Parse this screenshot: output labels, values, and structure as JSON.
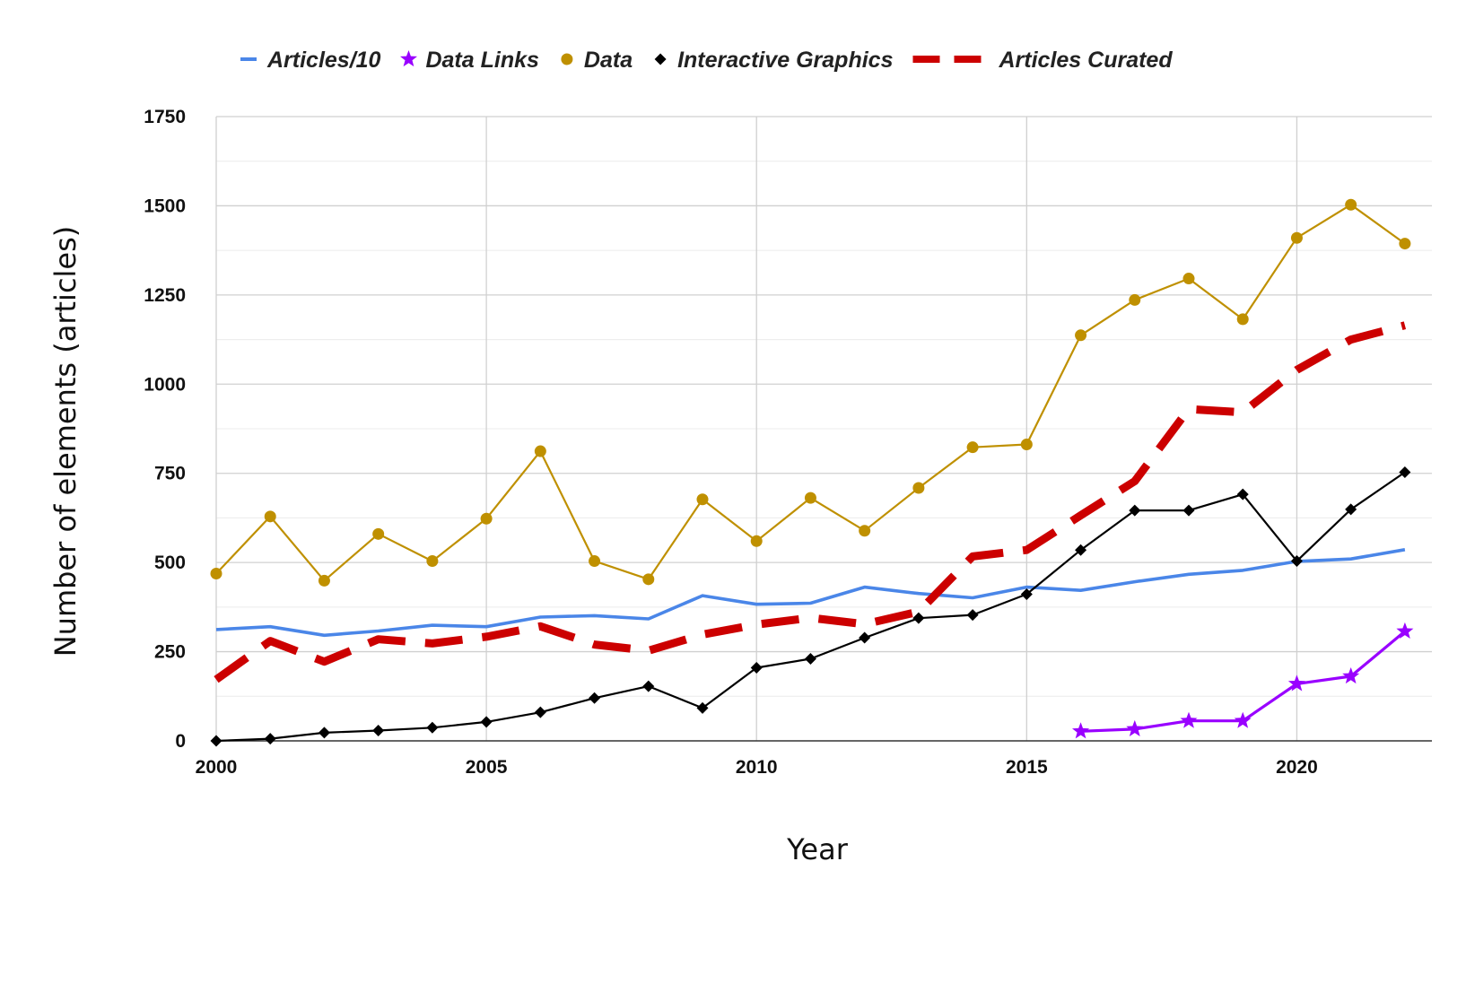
{
  "chart_data": {
    "type": "line",
    "title": "",
    "xlabel": "Year",
    "ylabel": "Number of elements (articles)",
    "xlim": [
      2000,
      2022.5
    ],
    "ylim": [
      0,
      1750
    ],
    "x_ticks": [
      2000,
      2005,
      2010,
      2015,
      2020
    ],
    "y_ticks": [
      0,
      250,
      500,
      750,
      1000,
      1250,
      1500,
      1750
    ],
    "grid": true,
    "legend_position": "top",
    "series": [
      {
        "name": "Articles/10",
        "color": "#4a86e8",
        "marker": "none",
        "line_style": "solid",
        "x": [
          2000,
          2001,
          2002,
          2003,
          2004,
          2005,
          2006,
          2007,
          2008,
          2009,
          2010,
          2011,
          2012,
          2013,
          2014,
          2015,
          2016,
          2017,
          2018,
          2019,
          2020,
          2021,
          2022
        ],
        "values": [
          312,
          320,
          296,
          308,
          324,
          320,
          347,
          351,
          342,
          407,
          383,
          386,
          431,
          413,
          401,
          431,
          422,
          446,
          467,
          478,
          503,
          510,
          536
        ]
      },
      {
        "name": "Data Links",
        "color": "#9900ff",
        "marker": "star",
        "line_style": "solid",
        "x": [
          2016,
          2017,
          2018,
          2019,
          2020,
          2021,
          2022
        ],
        "values": [
          27,
          33,
          56,
          56,
          160,
          181,
          307
        ]
      },
      {
        "name": "Data",
        "color": "#bf9000",
        "marker": "circle",
        "line_style": "solid",
        "x": [
          2000,
          2001,
          2002,
          2003,
          2004,
          2005,
          2006,
          2007,
          2008,
          2009,
          2010,
          2011,
          2012,
          2013,
          2014,
          2015,
          2016,
          2017,
          2018,
          2019,
          2020,
          2021,
          2022
        ],
        "values": [
          469,
          629,
          449,
          580,
          504,
          623,
          812,
          504,
          453,
          677,
          560,
          681,
          589,
          709,
          823,
          831,
          1137,
          1236,
          1296,
          1182,
          1410,
          1503,
          1394
        ]
      },
      {
        "name": "Interactive Graphics",
        "color": "#000000",
        "marker": "diamond",
        "line_style": "solid",
        "x": [
          2000,
          2001,
          2002,
          2003,
          2004,
          2005,
          2006,
          2007,
          2008,
          2009,
          2010,
          2011,
          2012,
          2013,
          2014,
          2015,
          2016,
          2017,
          2018,
          2019,
          2020,
          2021,
          2022
        ],
        "values": [
          0,
          6,
          23,
          29,
          37,
          53,
          80,
          120,
          153,
          92,
          205,
          230,
          289,
          344,
          353,
          411,
          535,
          646,
          646,
          691,
          504,
          649,
          753
        ]
      },
      {
        "name": "Articles Curated",
        "color": "#cc0000",
        "marker": "none",
        "line_style": "dashed",
        "x": [
          2000,
          2001,
          2002,
          2003,
          2004,
          2005,
          2006,
          2007,
          2008,
          2009,
          2010,
          2011,
          2012,
          2013,
          2014,
          2015,
          2016,
          2017,
          2018,
          2019,
          2020,
          2021,
          2022
        ],
        "values": [
          172,
          280,
          222,
          285,
          273,
          292,
          321,
          270,
          253,
          298,
          326,
          345,
          327,
          362,
          517,
          535,
          632,
          728,
          930,
          921,
          1040,
          1125,
          1165
        ]
      }
    ]
  }
}
